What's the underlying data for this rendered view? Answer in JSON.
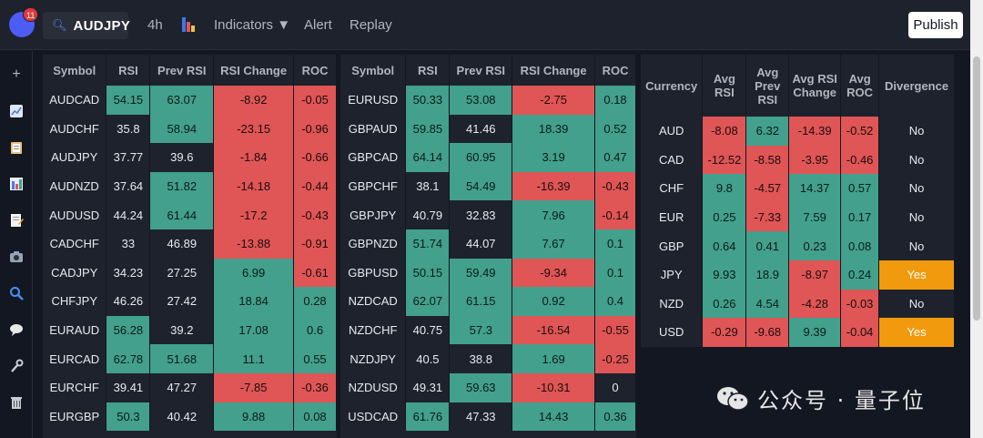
{
  "topbar": {
    "notification_count": "11",
    "symbol": "AUDJPY",
    "interval": "4h",
    "indicators": "Indicators ▼",
    "alert": "Alert",
    "replay": "Replay",
    "publish": "Publish"
  },
  "colors": {
    "positive": "#42a08d",
    "negative": "#e05555",
    "highlight": "#f19a0e",
    "background": "#131722",
    "panel": "#1e222d"
  },
  "sidebar_icons": [
    "plus-icon",
    "line-chart-icon",
    "clipboard-icon",
    "bar-chart-icon",
    "notes-icon",
    "camera-icon",
    "search-icon",
    "chat-icon",
    "wrench-icon",
    "trash-icon"
  ],
  "table1": {
    "headers": [
      "Symbol",
      "RSI",
      "Prev RSI",
      "RSI Change",
      "ROC"
    ],
    "rows": [
      {
        "cells": [
          "AUDCAD",
          "54.15",
          "63.07",
          "-8.92",
          "-0.05"
        ],
        "colors": [
          "n",
          "g",
          "g",
          "r",
          "r"
        ]
      },
      {
        "cells": [
          "AUDCHF",
          "35.8",
          "58.94",
          "-23.15",
          "-0.96"
        ],
        "colors": [
          "n",
          "n",
          "g",
          "r",
          "r"
        ]
      },
      {
        "cells": [
          "AUDJPY",
          "37.77",
          "39.6",
          "-1.84",
          "-0.66"
        ],
        "colors": [
          "n",
          "n",
          "n",
          "r",
          "r"
        ]
      },
      {
        "cells": [
          "AUDNZD",
          "37.64",
          "51.82",
          "-14.18",
          "-0.44"
        ],
        "colors": [
          "n",
          "n",
          "g",
          "r",
          "r"
        ]
      },
      {
        "cells": [
          "AUDUSD",
          "44.24",
          "61.44",
          "-17.2",
          "-0.43"
        ],
        "colors": [
          "n",
          "n",
          "g",
          "r",
          "r"
        ]
      },
      {
        "cells": [
          "CADCHF",
          "33",
          "46.89",
          "-13.88",
          "-0.91"
        ],
        "colors": [
          "n",
          "n",
          "n",
          "r",
          "r"
        ]
      },
      {
        "cells": [
          "CADJPY",
          "34.23",
          "27.25",
          "6.99",
          "-0.61"
        ],
        "colors": [
          "n",
          "n",
          "n",
          "g",
          "r"
        ]
      },
      {
        "cells": [
          "CHFJPY",
          "46.26",
          "27.42",
          "18.84",
          "0.28"
        ],
        "colors": [
          "n",
          "n",
          "n",
          "g",
          "g"
        ]
      },
      {
        "cells": [
          "EURAUD",
          "56.28",
          "39.2",
          "17.08",
          "0.6"
        ],
        "colors": [
          "n",
          "g",
          "n",
          "g",
          "g"
        ]
      },
      {
        "cells": [
          "EURCAD",
          "62.78",
          "51.68",
          "11.1",
          "0.55"
        ],
        "colors": [
          "n",
          "g",
          "g",
          "g",
          "g"
        ]
      },
      {
        "cells": [
          "EURCHF",
          "39.41",
          "47.27",
          "-7.85",
          "-0.36"
        ],
        "colors": [
          "n",
          "n",
          "n",
          "r",
          "r"
        ]
      },
      {
        "cells": [
          "EURGBP",
          "50.3",
          "40.42",
          "9.88",
          "0.08"
        ],
        "colors": [
          "n",
          "g",
          "n",
          "g",
          "g"
        ]
      }
    ]
  },
  "table2": {
    "headers": [
      "Symbol",
      "RSI",
      "Prev RSI",
      "RSI Change",
      "ROC"
    ],
    "rows": [
      {
        "cells": [
          "EURUSD",
          "50.33",
          "53.08",
          "-2.75",
          "0.18"
        ],
        "colors": [
          "n",
          "g",
          "g",
          "r",
          "g"
        ]
      },
      {
        "cells": [
          "GBPAUD",
          "59.85",
          "41.46",
          "18.39",
          "0.52"
        ],
        "colors": [
          "n",
          "g",
          "n",
          "g",
          "g"
        ]
      },
      {
        "cells": [
          "GBPCAD",
          "64.14",
          "60.95",
          "3.19",
          "0.47"
        ],
        "colors": [
          "n",
          "g",
          "g",
          "g",
          "g"
        ]
      },
      {
        "cells": [
          "GBPCHF",
          "38.1",
          "54.49",
          "-16.39",
          "-0.43"
        ],
        "colors": [
          "n",
          "n",
          "g",
          "r",
          "r"
        ]
      },
      {
        "cells": [
          "GBPJPY",
          "40.79",
          "32.83",
          "7.96",
          "-0.14"
        ],
        "colors": [
          "n",
          "n",
          "n",
          "g",
          "r"
        ]
      },
      {
        "cells": [
          "GBPNZD",
          "51.74",
          "44.07",
          "7.67",
          "0.1"
        ],
        "colors": [
          "n",
          "g",
          "n",
          "g",
          "g"
        ]
      },
      {
        "cells": [
          "GBPUSD",
          "50.15",
          "59.49",
          "-9.34",
          "0.1"
        ],
        "colors": [
          "n",
          "g",
          "g",
          "r",
          "g"
        ]
      },
      {
        "cells": [
          "NZDCAD",
          "62.07",
          "61.15",
          "0.92",
          "0.4"
        ],
        "colors": [
          "n",
          "g",
          "g",
          "g",
          "g"
        ]
      },
      {
        "cells": [
          "NZDCHF",
          "40.75",
          "57.3",
          "-16.54",
          "-0.55"
        ],
        "colors": [
          "n",
          "n",
          "g",
          "r",
          "r"
        ]
      },
      {
        "cells": [
          "NZDJPY",
          "40.5",
          "38.8",
          "1.69",
          "-0.25"
        ],
        "colors": [
          "n",
          "n",
          "n",
          "g",
          "r"
        ]
      },
      {
        "cells": [
          "NZDUSD",
          "49.31",
          "59.63",
          "-10.31",
          "0"
        ],
        "colors": [
          "n",
          "n",
          "g",
          "r",
          "n"
        ]
      },
      {
        "cells": [
          "USDCAD",
          "61.76",
          "47.33",
          "14.43",
          "0.36"
        ],
        "colors": [
          "n",
          "g",
          "n",
          "g",
          "g"
        ]
      }
    ]
  },
  "table3": {
    "headers": [
      "Currency",
      "Avg RSI",
      "Avg Prev RSI",
      "Avg RSI Change",
      "Avg ROC",
      "Divergence"
    ],
    "rows": [
      {
        "cells": [
          "AUD",
          "-8.08",
          "6.32",
          "-14.39",
          "-0.52",
          "No"
        ],
        "colors": [
          "n",
          "r",
          "g",
          "r",
          "r",
          "n"
        ]
      },
      {
        "cells": [
          "CAD",
          "-12.52",
          "-8.58",
          "-3.95",
          "-0.46",
          "No"
        ],
        "colors": [
          "n",
          "r",
          "r",
          "r",
          "r",
          "n"
        ]
      },
      {
        "cells": [
          "CHF",
          "9.8",
          "-4.57",
          "14.37",
          "0.57",
          "No"
        ],
        "colors": [
          "n",
          "g",
          "r",
          "g",
          "g",
          "n"
        ]
      },
      {
        "cells": [
          "EUR",
          "0.25",
          "-7.33",
          "7.59",
          "0.17",
          "No"
        ],
        "colors": [
          "n",
          "g",
          "r",
          "g",
          "g",
          "n"
        ]
      },
      {
        "cells": [
          "GBP",
          "0.64",
          "0.41",
          "0.23",
          "0.08",
          "No"
        ],
        "colors": [
          "n",
          "g",
          "g",
          "g",
          "g",
          "n"
        ]
      },
      {
        "cells": [
          "JPY",
          "9.93",
          "18.9",
          "-8.97",
          "0.24",
          "Yes"
        ],
        "colors": [
          "n",
          "g",
          "g",
          "r",
          "g",
          "y"
        ]
      },
      {
        "cells": [
          "NZD",
          "0.26",
          "4.54",
          "-4.28",
          "-0.03",
          "No"
        ],
        "colors": [
          "n",
          "g",
          "g",
          "r",
          "r",
          "n"
        ]
      },
      {
        "cells": [
          "USD",
          "-0.29",
          "-9.68",
          "9.39",
          "-0.04",
          "Yes"
        ],
        "colors": [
          "n",
          "r",
          "r",
          "g",
          "r",
          "y"
        ]
      }
    ]
  },
  "watermark": {
    "text": "公众号 · 量子位"
  }
}
